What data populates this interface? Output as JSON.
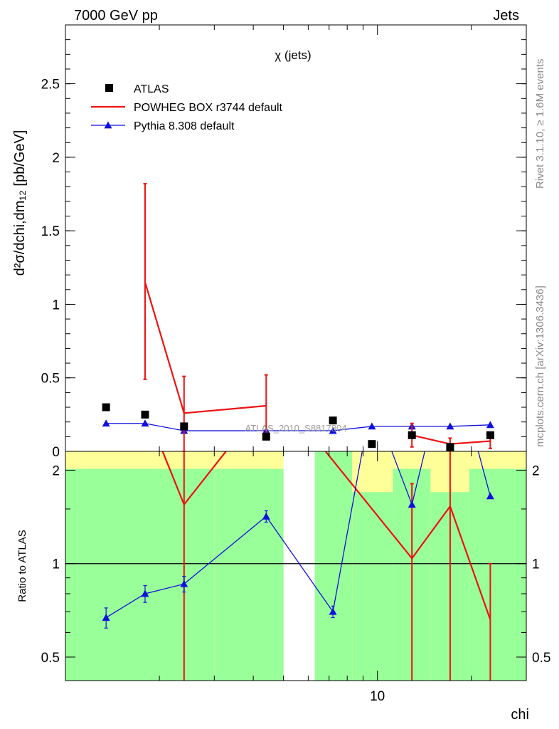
{
  "header": {
    "left": "7000 GeV pp",
    "right": "Jets"
  },
  "side_text": {
    "rivet": "Rivet 3.1.10, ≥ 1.6M events",
    "mcplots": "mcplots.cern.ch [arXiv:1306.3436]"
  },
  "chart_data": [
    {
      "type": "scatter",
      "title": "χ (jets)",
      "ylabel": "d²σ/dchi,dm₁₂ [pb/GeV]",
      "watermark": "ATLAS_2010_S8817804",
      "x_scale": "log",
      "xlim": [
        1,
        30
      ],
      "ylim": [
        0,
        2.9
      ],
      "y_ticks": [
        "0",
        "0.5",
        "1",
        "1.5",
        "2",
        "2.5"
      ],
      "x": [
        1.35,
        1.8,
        2.4,
        4.4,
        7.2,
        9.6,
        12.9,
        17.1,
        23.0
      ],
      "series": [
        {
          "name": "ATLAS",
          "style": "markers",
          "color": "#000000",
          "values": [
            0.3,
            0.25,
            0.17,
            0.1,
            0.21,
            0.05,
            0.11,
            0.03,
            0.11
          ]
        },
        {
          "name": "POWHEG BOX r3744 default",
          "style": "line",
          "color": "#ee1111",
          "values": [
            null,
            1.15,
            0.26,
            0.31,
            null,
            null,
            0.11,
            0.05,
            0.07
          ],
          "err_low": [
            null,
            0.66,
            0.26,
            0.21,
            null,
            null,
            0.08,
            0.05,
            0.05
          ],
          "err_high": [
            null,
            0.67,
            0.25,
            0.21,
            null,
            null,
            0.08,
            0.04,
            0.05
          ]
        },
        {
          "name": "Pythia 8.308 default",
          "style": "line-markers",
          "color": "#1010dd",
          "values": [
            0.19,
            0.19,
            0.14,
            0.14,
            0.14,
            0.17,
            0.17,
            0.17,
            0.18
          ]
        }
      ]
    },
    {
      "type": "line",
      "ylabel": "Ratio to ATLAS",
      "xlabel": "chi",
      "x_scale": "log",
      "y_scale": "log",
      "ylim": [
        0.42,
        2.3
      ],
      "y_ticks": [
        "0.5",
        "1",
        "2"
      ],
      "x_ticks": [
        "10"
      ],
      "x": [
        1.35,
        1.8,
        2.4,
        4.4,
        7.2,
        9.6,
        12.9,
        17.1,
        23.0
      ],
      "bands": {
        "edges": [
          1.0,
          3.0,
          5.0,
          6.3,
          8.3,
          11.2,
          14.8,
          19.7,
          30.0
        ],
        "green_low": [
          0.42,
          0.42,
          null,
          0.42,
          0.42,
          0.42,
          0.42,
          0.42
        ],
        "green_high": [
          2.02,
          2.02,
          null,
          2.3,
          1.7,
          2.02,
          1.7,
          2.02
        ],
        "yellow_low": [
          0.42,
          0.42,
          null,
          0.42,
          0.42,
          0.42,
          0.42,
          0.465
        ],
        "yellow_high": [
          2.3,
          2.3,
          null,
          2.3,
          2.3,
          2.3,
          2.3,
          2.3
        ]
      },
      "series": [
        {
          "name": "POWHEG BOX r3744 default",
          "color": "#ee1111",
          "values": [
            null,
            null,
            1.55,
            null,
            null,
            null,
            1.04,
            1.53,
            0.66
          ],
          "err_low": [
            null,
            null,
            1.2,
            null,
            null,
            null,
            0.7,
            1.2,
            0.3
          ],
          "err_high": [
            null,
            null,
            0.8,
            null,
            null,
            null,
            0.77,
            0.8,
            0.34
          ]
        },
        {
          "name": "Pythia 8.308 default",
          "color": "#1010dd",
          "values": [
            0.67,
            0.8,
            0.86,
            1.42,
            0.7,
            3.4,
            1.55,
            5.0,
            1.65
          ],
          "err_low": [
            0.05,
            0.05,
            0.05,
            0.06,
            0.03,
            0,
            0,
            0,
            0
          ],
          "err_high": [
            0.05,
            0.05,
            0.05,
            0.06,
            0.03,
            0,
            0,
            0,
            0
          ]
        }
      ],
      "reference_line": 1
    }
  ]
}
